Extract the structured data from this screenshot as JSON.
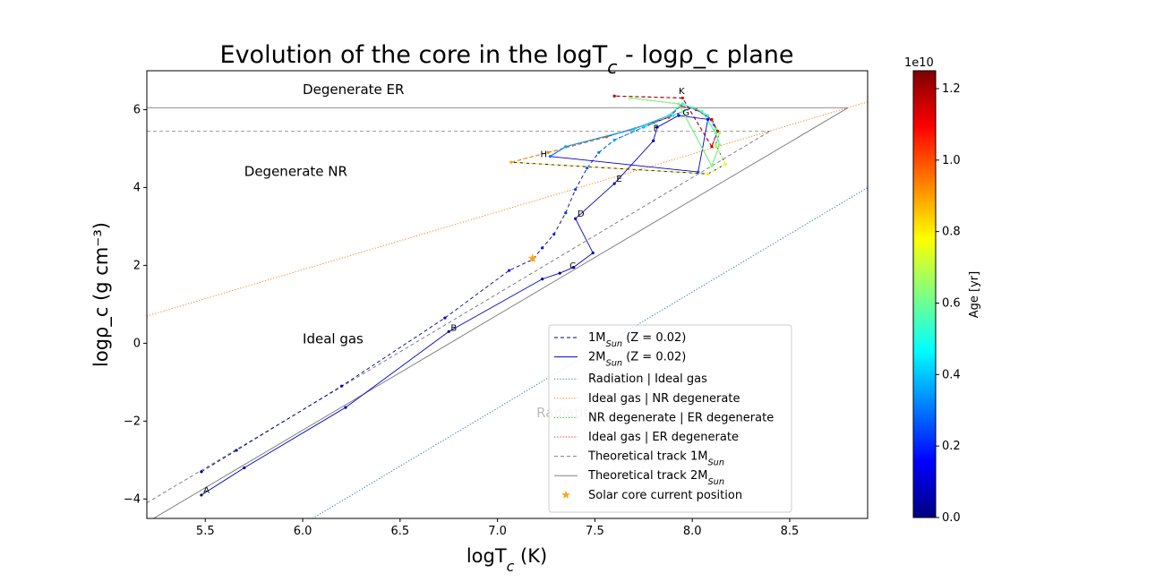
{
  "chart_data": {
    "type": "line",
    "title": "Evolution of the core in the logT_c - logρ_c plane",
    "xlabel": "logT_c (K)",
    "ylabel": "logρ_c (g cm⁻³)",
    "xlim": [
      5.2,
      8.9
    ],
    "ylim": [
      -4.5,
      7.0
    ],
    "xticks": [
      "5.5",
      "6.0",
      "6.5",
      "7.0",
      "7.5",
      "8.0",
      "8.5"
    ],
    "yticks": [
      "−4",
      "−2",
      "0",
      "2",
      "4",
      "6"
    ],
    "grid": false,
    "legend_position": "lower-right",
    "region_labels": [
      {
        "text": "Degenerate ER",
        "x": 6.0,
        "y": 6.4
      },
      {
        "text": "Degenerate NR",
        "x": 5.7,
        "y": 4.3
      },
      {
        "text": "Ideal gas",
        "x": 6.0,
        "y": 0.0
      },
      {
        "text": "Radiation",
        "x": 7.2,
        "y": -1.9
      }
    ],
    "series": [
      {
        "name": "1M_Sun (Z = 0.02)",
        "style": "dashed",
        "x": [
          5.48,
          5.66,
          6.2,
          6.73,
          7.06,
          7.18,
          7.23,
          7.29,
          7.35,
          7.4,
          7.46,
          7.52,
          7.6,
          7.75,
          7.9,
          8.0,
          8.08,
          8.12,
          8.14,
          8.12,
          8.17,
          8.08,
          7.07,
          7.26,
          7.56,
          7.88,
          7.94,
          8.02,
          8.1,
          8.13,
          8.1,
          7.95,
          7.6
        ],
        "y": [
          -3.3,
          -2.75,
          -1.1,
          0.65,
          1.87,
          2.15,
          2.45,
          2.8,
          3.35,
          3.95,
          4.5,
          4.9,
          5.22,
          5.55,
          5.85,
          6.05,
          5.85,
          5.5,
          5.4,
          5.1,
          4.6,
          4.35,
          4.65,
          4.9,
          5.3,
          5.8,
          6.1,
          6.0,
          5.75,
          5.45,
          5.05,
          6.3,
          6.35
        ],
        "age": [
          0.02,
          0.05,
          0.1,
          0.12,
          0.14,
          0.16,
          0.18,
          0.2,
          0.22,
          0.24,
          0.26,
          0.3,
          0.35,
          0.4,
          0.45,
          0.5,
          0.55,
          0.6,
          0.65,
          0.7,
          0.75,
          0.8,
          0.9,
          0.95,
          1.0,
          1.05,
          1.1,
          1.12,
          1.14,
          1.15,
          1.16,
          1.18,
          1.2
        ]
      },
      {
        "name": "2M_Sun (Z = 0.02)",
        "style": "solid",
        "x": [
          5.48,
          5.7,
          6.22,
          6.75,
          7.23,
          7.32,
          7.39,
          7.49,
          7.4,
          7.6,
          7.8,
          7.82,
          7.93,
          8.08,
          8.03,
          7.27,
          7.35,
          7.7,
          7.88,
          7.95,
          8.05,
          8.12,
          8.14,
          8.1,
          7.93,
          7.68
        ],
        "y": [
          -3.9,
          -3.2,
          -1.65,
          0.3,
          1.65,
          1.8,
          1.95,
          2.32,
          3.2,
          4.1,
          5.2,
          5.55,
          5.85,
          5.75,
          4.4,
          4.8,
          5.05,
          5.5,
          5.85,
          6.15,
          5.95,
          5.4,
          5.1,
          4.55,
          6.15,
          6.3
        ],
        "age": [
          0.0,
          0.01,
          0.02,
          0.03,
          0.04,
          0.05,
          0.06,
          0.07,
          0.08,
          0.09,
          0.1,
          0.11,
          0.12,
          0.15,
          0.25,
          0.3,
          0.35,
          0.4,
          0.45,
          0.5,
          0.55,
          0.6,
          0.62,
          0.63,
          0.64,
          0.65
        ]
      },
      {
        "name": "Radiation | Ideal gas",
        "style": "dotted",
        "color": "#1f77b4",
        "x": [
          6.05,
          8.9
        ],
        "y": [
          -4.5,
          4.0
        ]
      },
      {
        "name": "Ideal gas | NR degenerate",
        "style": "dotted",
        "color": "#ff7f0e",
        "x": [
          5.2,
          8.9
        ],
        "y": [
          0.7,
          6.2
        ]
      },
      {
        "name": "NR degenerate | ER degenerate",
        "style": "dotted",
        "color": "#2ca02c",
        "x": [],
        "y": []
      },
      {
        "name": "Ideal gas | ER degenerate",
        "style": "dotted",
        "color": "#d62728",
        "x": [],
        "y": []
      },
      {
        "name": "Theoretical track 1M_Sun",
        "style": "dashed",
        "color": "#808080",
        "x": [
          5.2,
          8.4
        ],
        "y": [
          -4.1,
          5.45
        ]
      },
      {
        "name": "Theoretical track 2M_Sun",
        "style": "solid",
        "color": "#808080",
        "x": [
          5.2,
          8.8
        ],
        "y": [
          -4.6,
          6.05
        ]
      },
      {
        "name": "Solar core current position",
        "style": "marker-star",
        "color": "#f5a623",
        "x": [
          7.18
        ],
        "y": [
          2.18
        ]
      }
    ],
    "horizontal_lines": [
      {
        "y": 6.05,
        "style": "solid",
        "xmax": 8.8
      },
      {
        "y": 5.45,
        "style": "dashed",
        "xmax": 8.4
      }
    ],
    "point_labels": [
      {
        "text": "A",
        "x": 5.49,
        "y": -3.85
      },
      {
        "text": "B",
        "x": 6.76,
        "y": 0.32
      },
      {
        "text": "C",
        "x": 7.37,
        "y": 1.92
      },
      {
        "text": "D",
        "x": 7.41,
        "y": 3.25
      },
      {
        "text": "E",
        "x": 7.61,
        "y": 4.15
      },
      {
        "text": "F",
        "x": 7.8,
        "y": 5.45
      },
      {
        "text": "G",
        "x": 7.95,
        "y": 5.85
      },
      {
        "text": "H",
        "x": 7.22,
        "y": 4.78
      },
      {
        "text": "K",
        "x": 7.93,
        "y": 6.4
      }
    ],
    "colorbar": {
      "label": "Age [yr]",
      "multiplier": "1e10",
      "range": [
        0.0,
        1.25
      ],
      "ticks": [
        "0.0",
        "0.2",
        "0.4",
        "0.6",
        "0.8",
        "1.0",
        "1.2"
      ],
      "colormap": "jet"
    }
  }
}
